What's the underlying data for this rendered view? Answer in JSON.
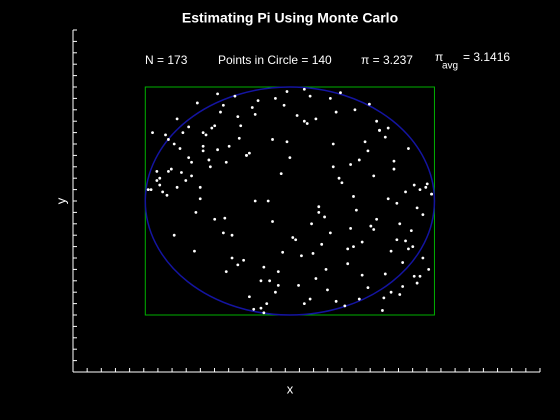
{
  "chart_data": {
    "type": "scatter",
    "title": "Estimating Pi Using Monte Carlo",
    "annotations": [
      "N = 173",
      "Points in Circle = 140",
      "π = 3.237"
    ],
    "pi_avg": {
      "symbol": "π",
      "subscript": "avg",
      "text": "= 3.1416"
    },
    "xlabel": "x",
    "ylabel": "y",
    "xlim": [
      -1.5,
      1.73
    ],
    "ylim": [
      -1.5,
      1.5
    ],
    "radius": 1,
    "square_color": "#00b000",
    "circle_color": "#1414a0",
    "point_color": "#ffffff",
    "x": [
      0.3,
      -0.8,
      0.55,
      -0.2,
      0.9,
      -0.6,
      0.1,
      0.72,
      -0.45,
      0.05,
      -0.9,
      0.4,
      -0.3,
      0.65,
      -0.7,
      0.2,
      0.85,
      -0.1,
      0.5,
      -0.55,
      0.15,
      -0.35,
      0.78,
      -0.85,
      0.35,
      -0.05,
      0.6,
      -0.65,
      0.95,
      -0.25,
      0.45,
      -0.75,
      0.25,
      -0.5,
      0.8,
      -0.15,
      0.7,
      -0.95,
      0.0,
      0.58,
      -0.4,
      0.12,
      -0.62,
      0.88,
      -0.28,
      0.32,
      -0.82,
      0.68,
      -0.08,
      0.52,
      -0.72,
      0.22,
      -0.48,
      0.92,
      -0.18,
      0.42,
      -0.58,
      0.76,
      -0.38,
      0.08,
      0.62,
      -0.88,
      0.28,
      -0.22,
      0.82,
      -0.68,
      0.18,
      -0.42,
      0.98,
      -0.12,
      0.38,
      -0.78,
      0.48,
      -0.32,
      0.74,
      -0.52,
      0.02,
      0.86,
      -0.92,
      0.26,
      -0.6,
      0.56,
      -0.02,
      0.66,
      -0.44,
      0.14,
      -0.84,
      0.46,
      -0.26,
      0.94,
      -0.66,
      0.36,
      -0.14,
      0.72,
      -0.36,
      0.04,
      -0.76,
      0.64,
      -0.54,
      0.24,
      0.84,
      -0.46,
      0.16,
      -0.86,
      0.54,
      -0.06,
      0.44,
      -0.64,
      0.96,
      -0.3,
      0.1,
      -0.7,
      0.6,
      -0.16,
      0.34,
      -0.96,
      0.78,
      -0.24,
      0.5,
      -0.8,
      0.2,
      -0.5,
      0.9,
      -0.4,
      0.66,
      -0.1,
      0.3,
      -0.9,
      0.7,
      -0.34,
      0.06,
      -0.62,
      0.82,
      -0.2,
      0.42,
      -0.74,
      0.58,
      -0.04,
      0.92,
      -0.56,
      0.28,
      -0.98,
      0.48,
      -0.12,
      0.76,
      -0.44,
      0.18,
      -0.68,
      0.88,
      -0.28,
      0.4,
      -0.84,
      0.68,
      -0.36,
      0.1,
      -0.52,
      0.8,
      -0.08,
      0.54,
      -0.92,
      0.32,
      -0.6,
      0.74,
      -0.18,
      0.98,
      -0.78,
      0.14,
      -0.46,
      0.62,
      -0.02,
      0.86,
      -0.24,
      0.44
    ],
    "series": [
      {
        "values": [
          0.5,
          -0.3,
          0.85,
          -0.7,
          0.1,
          0.6,
          -0.9,
          0.35,
          -0.15,
          0.75,
          0.2,
          -0.55,
          0.4,
          -0.85,
          0.65,
          -0.05,
          -0.4,
          0.9,
          -0.65,
          0.3,
          -0.2,
          0.55,
          -0.75,
          0.05,
          0.95,
          -0.45,
          0.7,
          -0.1,
          0.15,
          -0.95,
          0.8,
          0.25,
          -0.6,
          0.45,
          -0.35,
          0.0,
          -0.8,
          0.6,
          0.38,
          -0.25,
          -0.5,
          0.68,
          0.12,
          -0.72,
          0.42,
          -0.88,
          0.28,
          0.02,
          -0.62,
          0.52,
          0.18,
          -0.38,
          0.78,
          -0.12,
          -0.58,
          0.32,
          0.58,
          -0.82,
          0.92,
          -0.48,
          0.62,
          0.08,
          -0.28,
          0.88,
          -0.42,
          0.22,
          -0.68,
          0.48,
          0.06,
          -0.18,
          -0.92,
          0.72,
          0.36,
          -0.52,
          -0.02,
          0.66,
          -0.32,
          0.14,
          0.26,
          -0.78,
          0.44,
          -0.22,
          0.96,
          -0.64,
          0.34,
          -0.86,
          0.54,
          -0.08,
          0.82,
          0.12,
          -0.44,
          0.16,
          -0.7,
          0.28,
          0.74,
          -0.34,
          0.46,
          -0.96,
          0.64,
          -0.14,
          -0.26,
          0.84,
          -0.46,
          0.58,
          -0.76,
          0.24,
          0.04,
          0.86,
          -0.6,
          0.4,
          0.7,
          0.38,
          -0.16,
          -0.9,
          0.2,
          0.1,
          -0.54,
          0.76,
          -0.36,
          0.5,
          -0.1,
          0.94,
          -0.66,
          -0.3,
          0.56,
          -0.8,
          0.3,
          0.14,
          -0.44,
          0.66,
          -0.74,
          0.02,
          0.46,
          -0.94,
          -0.24,
          0.6,
          0.22,
          0.84,
          -0.5,
          0.36,
          0.9,
          0.1,
          -0.86,
          0.54,
          -0.2,
          -0.62,
          0.72,
          0.34,
          -0.06,
          -0.84,
          -0.42,
          0.26,
          0.64,
          -0.56,
          0.98,
          -0.16,
          0.08,
          -0.74,
          0.44,
          0.18,
          0.78,
          0.48,
          -0.34,
          -0.98,
          0.06,
          0.12,
          0.92,
          -0.28,
          0.62,
          0.52,
          -0.66,
          0.0,
          -0.4
        ]
      }
    ]
  }
}
